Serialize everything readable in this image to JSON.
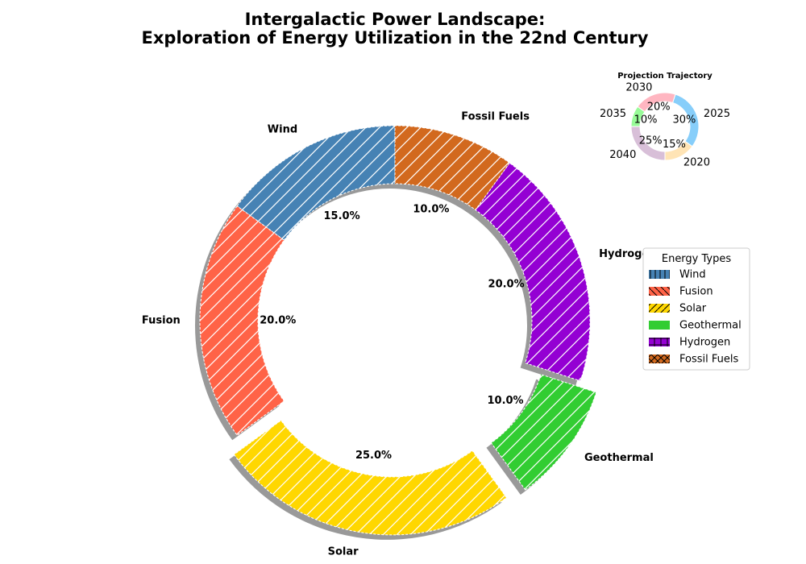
{
  "chart_data": {
    "type": "pie",
    "title_lines": [
      "Intergalactic Power Landscape:",
      "Exploration of Energy Utilization in the 22nd Century"
    ],
    "slices": [
      {
        "name": "Wind",
        "value": 15.0,
        "label": "15.0%",
        "color": "#4682B4",
        "explode": 0.0
      },
      {
        "name": "Fusion",
        "value": 20.0,
        "label": "20.0%",
        "color": "#FF6347",
        "explode": 0.0
      },
      {
        "name": "Solar",
        "value": 25.0,
        "label": "25.0%",
        "color": "#FFD700",
        "explode": 0.1
      },
      {
        "name": "Geothermal",
        "value": 10.0,
        "label": "10.0%",
        "color": "#32CD32",
        "explode": 0.1
      },
      {
        "name": "Hydrogen",
        "value": 20.0,
        "label": "20.0%",
        "color": "#9400D3",
        "explode": 0.0
      },
      {
        "name": "Fossil Fuels",
        "value": 10.0,
        "label": "10.0%",
        "color": "#D2691E",
        "explode": 0.0
      }
    ],
    "legend": {
      "title": "Energy Types",
      "position": "right",
      "entries": [
        {
          "name": "Wind",
          "color": "#4682B4",
          "hatch": "vertical"
        },
        {
          "name": "Fusion",
          "color": "#FF6347",
          "hatch": "backslash"
        },
        {
          "name": "Solar",
          "color": "#FFD700",
          "hatch": "slash"
        },
        {
          "name": "Geothermal",
          "color": "#32CD32",
          "hatch": "none"
        },
        {
          "name": "Hydrogen",
          "color": "#9400D3",
          "hatch": "plus"
        },
        {
          "name": "Fossil Fuels",
          "color": "#D2691E",
          "hatch": "cross"
        }
      ]
    },
    "inset": {
      "type": "pie",
      "title": "Projection Trajectory",
      "position": "top-right",
      "slices": [
        {
          "name": "2020",
          "value": 15,
          "label": "15%",
          "color": "#FFE4B5"
        },
        {
          "name": "2025",
          "value": 30,
          "label": "30%",
          "color": "#87CEFA"
        },
        {
          "name": "2030",
          "value": 20,
          "label": "20%",
          "color": "#FFB6C1"
        },
        {
          "name": "2035",
          "value": 10,
          "label": "10%",
          "color": "#98FB98"
        },
        {
          "name": "2040",
          "value": 25,
          "label": "25%",
          "color": "#D8BFD8"
        }
      ]
    }
  }
}
